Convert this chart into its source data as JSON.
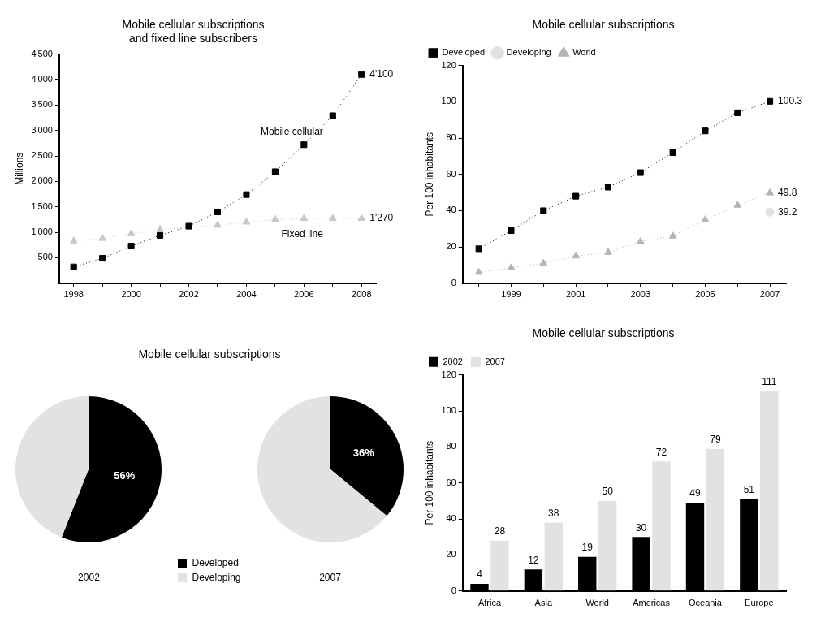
{
  "chart_data": [
    {
      "type": "line",
      "title": "Mobile cellular subscriptions\nand fixed line subscribers",
      "ylabel": "Millions",
      "x": [
        1998,
        1999,
        2000,
        2001,
        2002,
        2003,
        2004,
        2005,
        2006,
        2007,
        2008
      ],
      "xlim": [
        1997.5,
        2008.5
      ],
      "xticks": [
        1998,
        {
          "value": 1999,
          "label": null
        },
        2000,
        {
          "value": 2001,
          "label": null
        },
        2002,
        {
          "value": 2003,
          "label": null
        },
        2004,
        {
          "value": 2005,
          "label": null
        },
        2006,
        {
          "value": 2007,
          "label": null
        },
        2008
      ],
      "ylim": [
        0,
        4500
      ],
      "yticks": [
        500,
        {
          "value": 1000,
          "label": "1'000"
        },
        {
          "value": 1500,
          "label": "1'500"
        },
        {
          "value": 2000,
          "label": "2'000"
        },
        {
          "value": 2500,
          "label": "2'500"
        },
        {
          "value": 3000,
          "label": "3'000"
        },
        {
          "value": 3500,
          "label": "3'500"
        },
        {
          "value": 4000,
          "label": "4'000"
        },
        {
          "value": 4500,
          "label": "4'500"
        }
      ],
      "legend": false,
      "line_style": "dotted",
      "series": [
        {
          "name": "Mobile cellular",
          "color": "#000000",
          "marker": "square",
          "values": [
            320,
            490,
            730,
            940,
            1120,
            1400,
            1740,
            2190,
            2720,
            3290,
            4100
          ],
          "value_labels": [
            null,
            null,
            null,
            null,
            null,
            null,
            null,
            null,
            null,
            null,
            "4'100"
          ]
        },
        {
          "name": "Fixed line",
          "color": "#c8c8c8",
          "marker": "triangle",
          "values": [
            830,
            880,
            970,
            1060,
            null,
            1140,
            1200,
            1250,
            1270,
            1270,
            1270
          ],
          "value_labels": [
            null,
            null,
            null,
            null,
            null,
            null,
            null,
            null,
            null,
            null,
            "1'270"
          ]
        }
      ]
    },
    {
      "type": "line",
      "title": "Mobile cellular subscriptions",
      "ylabel": "Per 100 inhabitants",
      "x": [
        1998,
        1999,
        2000,
        2001,
        2002,
        2003,
        2004,
        2005,
        2006,
        2007
      ],
      "xlim": [
        1997.5,
        2007.5
      ],
      "xticks": [
        {
          "value": 1998,
          "label": null
        },
        1999,
        {
          "value": 2000,
          "label": null
        },
        2001,
        {
          "value": 2002,
          "label": null
        },
        2003,
        {
          "value": 2004,
          "label": null
        },
        2005,
        {
          "value": 2006,
          "label": null
        },
        2007
      ],
      "ylim": [
        0,
        120
      ],
      "yticks": [
        0,
        20,
        40,
        60,
        80,
        100,
        120
      ],
      "legend": "top left",
      "line_style": "dotted",
      "series": [
        {
          "name": "Developed",
          "color": "#000000",
          "marker": "square",
          "values": [
            19,
            29,
            40,
            48,
            53,
            61,
            72,
            84,
            94,
            100.3
          ],
          "value_labels": [
            null,
            null,
            null,
            null,
            null,
            null,
            null,
            null,
            null,
            "100.3"
          ]
        },
        {
          "name": "Developing",
          "color": "#e2e2e2",
          "marker": "circle",
          "values": [
            null,
            null,
            null,
            null,
            null,
            null,
            null,
            null,
            null,
            39.2
          ],
          "value_labels": [
            null,
            null,
            null,
            null,
            null,
            null,
            null,
            null,
            null,
            "39.2"
          ]
        },
        {
          "name": "World",
          "color": "#b4b4b4",
          "marker": "triangle",
          "values": [
            6,
            8.5,
            11,
            15,
            17,
            23,
            26,
            35,
            43,
            49.8
          ],
          "value_labels": [
            null,
            null,
            null,
            null,
            null,
            null,
            null,
            null,
            null,
            "49.8"
          ]
        }
      ]
    },
    {
      "type": "pie",
      "title": "Mobile cellular subscriptions",
      "categories": [
        "Developed",
        "Developing"
      ],
      "colors": [
        "#000000",
        "#e2e2e2"
      ],
      "legend": "bottom",
      "series": [
        {
          "name": "2002",
          "values": [
            56,
            44
          ],
          "value_labels": [
            "56%",
            null
          ]
        },
        {
          "name": "2007",
          "values": [
            36,
            64
          ],
          "value_labels": [
            "36%",
            null
          ]
        }
      ]
    },
    {
      "type": "bar",
      "title": "Mobile cellular subscriptions",
      "ylabel": "Per 100 inhabitants",
      "categories": [
        "Africa",
        "Asia",
        "World",
        "Americas",
        "Oceania",
        "Europe"
      ],
      "ylim": [
        0,
        120
      ],
      "yticks": [
        0,
        20,
        40,
        60,
        80,
        100,
        120
      ],
      "legend": "top left",
      "data_labels": true,
      "series": [
        {
          "name": "2002",
          "color": "#000000",
          "values": [
            4,
            12,
            19,
            30,
            49,
            51
          ]
        },
        {
          "name": "2007",
          "color": "#e2e2e2",
          "values": [
            28,
            38,
            50,
            72,
            79,
            111
          ]
        }
      ]
    }
  ]
}
